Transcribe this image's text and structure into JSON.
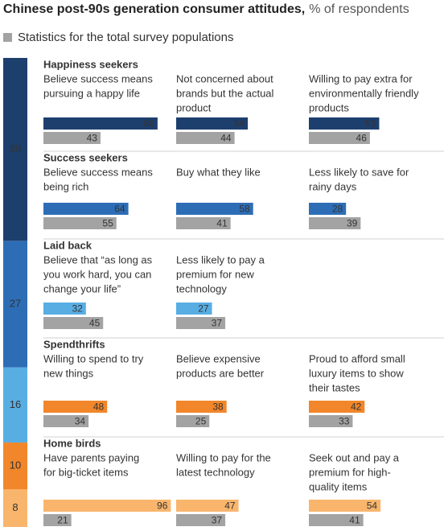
{
  "chart_data": {
    "type": "bar",
    "title": "Chinese post-90s generation consumer attitudes,",
    "subtitle": "% of respondents",
    "legend": {
      "name": "Statistics for the total survey populations",
      "color": "#a3a3a3"
    },
    "groups": [
      {
        "name": "Happiness seekers",
        "share": 39,
        "color": "#1d3f6e",
        "items": [
          {
            "label": [
              "Believe success means",
              "pursuing a happy life"
            ],
            "value": 86,
            "total": 43
          },
          {
            "label": [
              "Not concerned about",
              "brands but the actual",
              "product"
            ],
            "value": 54,
            "total": 44
          },
          {
            "label": [
              "Willing to pay extra for",
              "environmentally friendly",
              "products"
            ],
            "value": 53,
            "total": 46
          }
        ]
      },
      {
        "name": "Success seekers",
        "share": 27,
        "color": "#2d6db5",
        "items": [
          {
            "label": [
              "Believe success means",
              "being rich"
            ],
            "value": 64,
            "total": 55
          },
          {
            "label": [
              "Buy what they like"
            ],
            "value": 58,
            "total": 41
          },
          {
            "label": [
              "Less likely to save for",
              "rainy days"
            ],
            "value": 28,
            "total": 39
          }
        ]
      },
      {
        "name": "Laid back",
        "share": 16,
        "color": "#58aee3",
        "items": [
          {
            "label": [
              "Believe that “as long as",
              "you work hard, you can",
              "change your life”"
            ],
            "value": 32,
            "total": 45
          },
          {
            "label": [
              "Less likely to pay a",
              "premium for new",
              "technology"
            ],
            "value": 27,
            "total": 37
          }
        ]
      },
      {
        "name": "Spendthrifts",
        "share": 10,
        "color": "#f2862a",
        "items": [
          {
            "label": [
              "Willing to spend to try",
              "new things"
            ],
            "value": 48,
            "total": 34
          },
          {
            "label": [
              "Believe expensive",
              "products are better"
            ],
            "value": 38,
            "total": 25
          },
          {
            "label": [
              "Proud to afford small",
              "luxury items to show",
              "their tastes"
            ],
            "value": 42,
            "total": 33
          }
        ]
      },
      {
        "name": "Home birds",
        "share": 8,
        "color": "#f9b56c",
        "items": [
          {
            "label": [
              "Have parents paying",
              "for big-ticket items"
            ],
            "value": 96,
            "total": 21
          },
          {
            "label": [
              "Willing to pay for the",
              "latest technology"
            ],
            "value": 47,
            "total": 37
          },
          {
            "label": [
              "Seek out and pay a",
              "premium for high-",
              "quality items"
            ],
            "value": 54,
            "total": 41
          }
        ]
      }
    ]
  }
}
